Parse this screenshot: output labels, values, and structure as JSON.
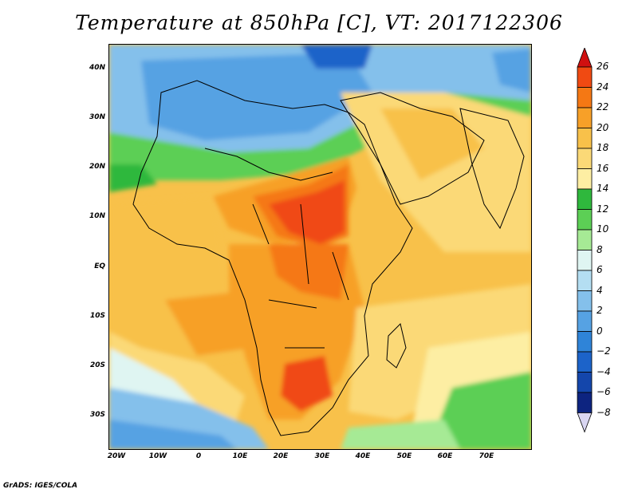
{
  "title": "Temperature at 850hPa [C], VT: 2017122306",
  "credit": "GrADS: IGES/COLA",
  "map": {
    "projection": "lat-lon",
    "lon_range": [
      -25,
      80
    ],
    "lat_range": [
      -38,
      45
    ],
    "lat_labels": [
      "40N",
      "30N",
      "20N",
      "10N",
      "EQ",
      "10S",
      "20S",
      "30S"
    ],
    "lon_labels": [
      "20W",
      "10W",
      "0",
      "10E",
      "20E",
      "30E",
      "40E",
      "50E",
      "60E",
      "70E"
    ],
    "field": "Temperature at 850hPa",
    "units": "C"
  },
  "colorbar": {
    "levels": [
      "26",
      "24",
      "22",
      "20",
      "18",
      "16",
      "14",
      "12",
      "10",
      "8",
      "6",
      "4",
      "2",
      "0",
      "−2",
      "−4",
      "−6",
      "−8"
    ],
    "colors": [
      "#d01010",
      "#f04a12",
      "#f57814",
      "#f7a028",
      "#f8c14a",
      "#fbd977",
      "#fdeea3",
      "#2fb83d",
      "#5ccf55",
      "#a6ea95",
      "#dff5f2",
      "#b4def2",
      "#84c0eb",
      "#56a2e3",
      "#2f84d8",
      "#1c63c9",
      "#1446ab",
      "#0d2480",
      "#d9d6f2"
    ],
    "top_arrow_color": "#d01010",
    "bottom_arrow_color": "#d9d6f2"
  }
}
